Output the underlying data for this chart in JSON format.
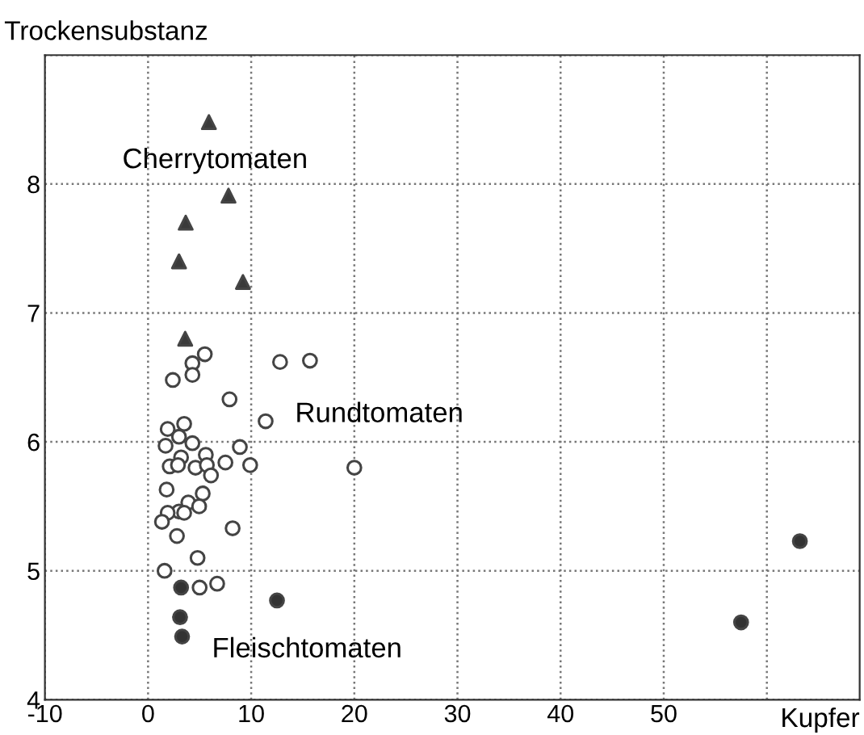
{
  "chart_data": {
    "type": "scatter",
    "xlabel": "Kupfer",
    "ylabel": "Trockensubstanz",
    "xlim": [
      -10,
      69
    ],
    "ylim": [
      4,
      9
    ],
    "xticks": [
      -10,
      0,
      10,
      20,
      30,
      40,
      50,
      {
        "value": 60,
        "label": null
      }
    ],
    "yticks": [
      4,
      5,
      6,
      7,
      8,
      {
        "value": 9,
        "label": null
      }
    ],
    "grid": true,
    "series": [
      {
        "marker": "triangle",
        "color": "#3a3a3a",
        "x": [
          5.9,
          7.8,
          3.65,
          3.0,
          9.2,
          3.6
        ],
        "values": [
          8.48,
          7.91,
          7.7,
          7.4,
          7.24,
          6.8
        ]
      },
      {
        "marker": "circle",
        "color": "#ffffff",
        "x": [
          5.5,
          4.3,
          4.3,
          2.4,
          12.8,
          15.7,
          7.9,
          11.4,
          3.5,
          1.9,
          3.0,
          1.7,
          4.3,
          8.9,
          5.6,
          3.2,
          2.1,
          2.9,
          4.6,
          5.7,
          7.5,
          9.9,
          6.1,
          20.0,
          1.8,
          5.3,
          3.9,
          4.95,
          3.0,
          3.5,
          1.9,
          1.35,
          2.8,
          8.2,
          4.8,
          1.6,
          5.0,
          6.7
        ],
        "values": [
          6.68,
          6.61,
          6.52,
          6.48,
          6.62,
          6.63,
          6.33,
          6.16,
          6.14,
          6.1,
          6.04,
          5.97,
          5.99,
          5.96,
          5.9,
          5.88,
          5.81,
          5.82,
          5.8,
          5.82,
          5.84,
          5.82,
          5.74,
          5.8,
          5.63,
          5.6,
          5.53,
          5.5,
          5.46,
          5.45,
          5.45,
          5.38,
          5.27,
          5.33,
          5.1,
          5.0,
          4.87,
          4.9
        ]
      },
      {
        "marker": "circle",
        "color": "#333333",
        "x": [
          3.2,
          3.1,
          3.3,
          12.5,
          63.2,
          57.5
        ],
        "values": [
          4.87,
          4.64,
          4.49,
          4.77,
          5.23,
          4.6
        ]
      }
    ],
    "annotations": [
      "Cherrytomaten",
      "Rundtomaten",
      "Fleischtomaten"
    ]
  }
}
